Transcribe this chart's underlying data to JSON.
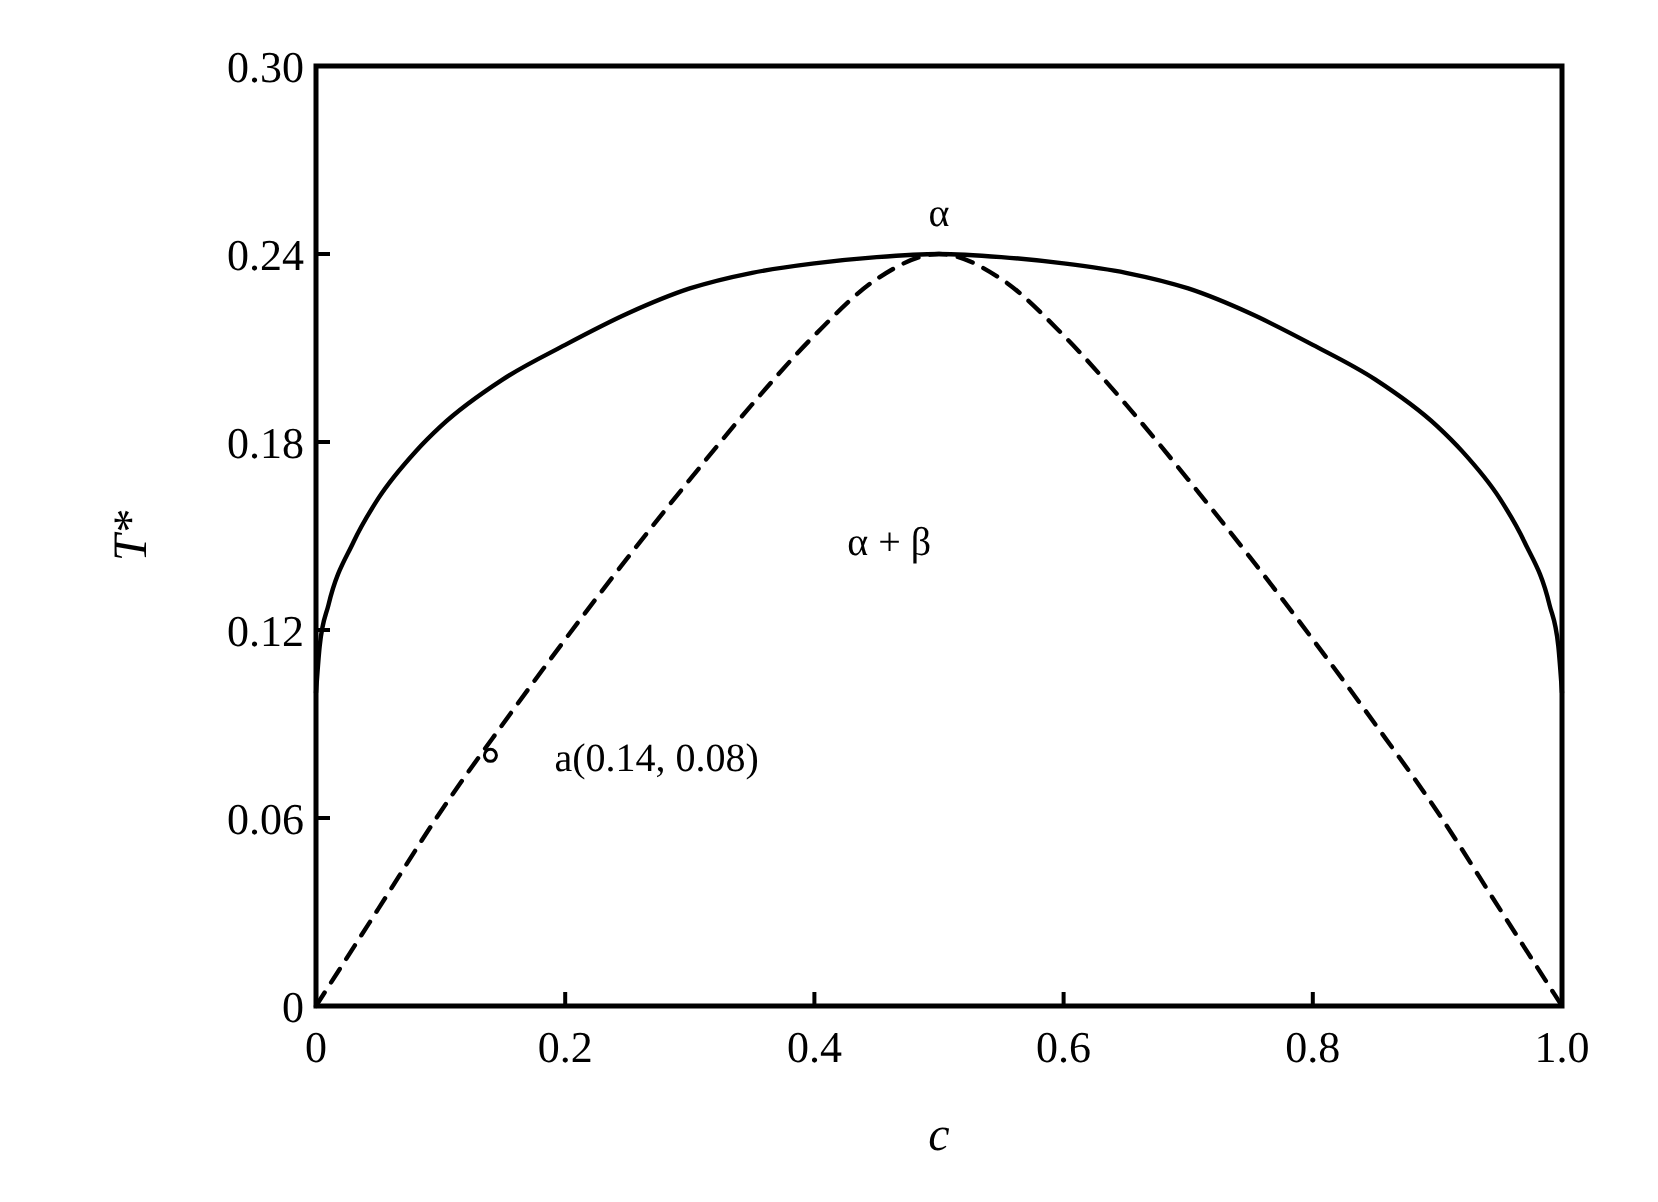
{
  "chart_data": {
    "type": "line",
    "xlabel": "c",
    "ylabel": "T*",
    "xlim": [
      0,
      1.0
    ],
    "xticks": [
      0,
      0.2,
      0.4,
      0.6,
      0.8,
      {
        "value": 1.0,
        "label": "1.0"
      }
    ],
    "ylim": [
      0,
      0.3
    ],
    "yticks": [
      0,
      0.06,
      0.12,
      0.18,
      0.24,
      {
        "value": 0.3,
        "label": "0.30"
      }
    ],
    "grid": false,
    "series": [
      {
        "color": "#000000",
        "line_style": "solid",
        "x": [
          0,
          0.003,
          0.01,
          0.03,
          0.05,
          0.08,
          0.1,
          0.15,
          0.2,
          0.25,
          0.3,
          0.35,
          0.4,
          0.45,
          0.5,
          0.55,
          0.6,
          0.65,
          0.7,
          0.75,
          0.8,
          0.85,
          0.9,
          0.92,
          0.95,
          0.97,
          0.99,
          0.997,
          1.0
        ],
        "values": [
          0.1,
          0.115,
          0.128,
          0.148,
          0.162,
          0.177,
          0.185,
          0.2,
          0.211,
          0.221,
          0.229,
          0.234,
          0.237,
          0.239,
          0.24,
          0.239,
          0.237,
          0.234,
          0.229,
          0.221,
          0.211,
          0.2,
          0.185,
          0.177,
          0.162,
          0.148,
          0.128,
          0.115,
          0.1
        ]
      },
      {
        "color": "#000000",
        "line_style": "dashed",
        "x": [
          0,
          0.05,
          0.1,
          0.15,
          0.2,
          0.25,
          0.3,
          0.35,
          0.4,
          0.45,
          0.5,
          0.55,
          0.6,
          0.65,
          0.7,
          0.75,
          0.8,
          0.85,
          0.9,
          0.95,
          1.0
        ],
        "values": [
          0,
          0.031,
          0.062,
          0.09,
          0.117,
          0.143,
          0.168,
          0.192,
          0.214,
          0.232,
          0.24,
          0.232,
          0.214,
          0.192,
          0.168,
          0.143,
          0.117,
          0.09,
          0.062,
          0.031,
          0
        ]
      },
      {
        "type": "scatter",
        "color": "#000000",
        "marker": "circle",
        "x": [
          0.14
        ],
        "values": [
          0.08
        ]
      }
    ],
    "annotations": [
      {
        "text": "a(0.14, 0.08)",
        "x": 0.14,
        "y": 0.08
      },
      {
        "text": "α",
        "x": 0.5,
        "y": 0.24
      },
      "α + β"
    ]
  }
}
